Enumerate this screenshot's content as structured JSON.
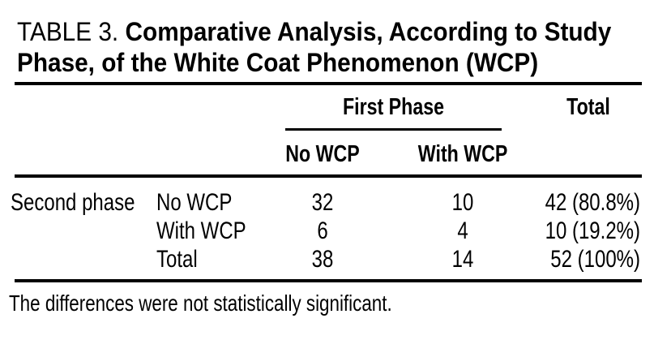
{
  "title": {
    "label": "TABLE 3.",
    "line1_bold": "Comparative Analysis, According to Study",
    "line2_bold": "Phase, of the White Coat Phenomenon (WCP)"
  },
  "table": {
    "column_group_header": "First Phase",
    "total_header": "Total",
    "subcolumns": {
      "no_wcp": "No WCP",
      "with_wcp": "With WCP"
    },
    "row_group_label": "Second phase",
    "rows": [
      {
        "label": "No WCP",
        "first_phase_no_wcp": "32",
        "first_phase_with_wcp": "10",
        "total": "42 (80.8%)"
      },
      {
        "label": "With WCP",
        "first_phase_no_wcp": "6",
        "first_phase_with_wcp": "4",
        "total": "10 (19.2%)"
      },
      {
        "label": "Total",
        "first_phase_no_wcp": "38",
        "first_phase_with_wcp": "14",
        "total": "52 (100%)"
      }
    ]
  },
  "footnote": "The differences were not statistically significant.",
  "colors": {
    "text": "#000000",
    "background": "#ffffff",
    "rule": "#000000"
  }
}
